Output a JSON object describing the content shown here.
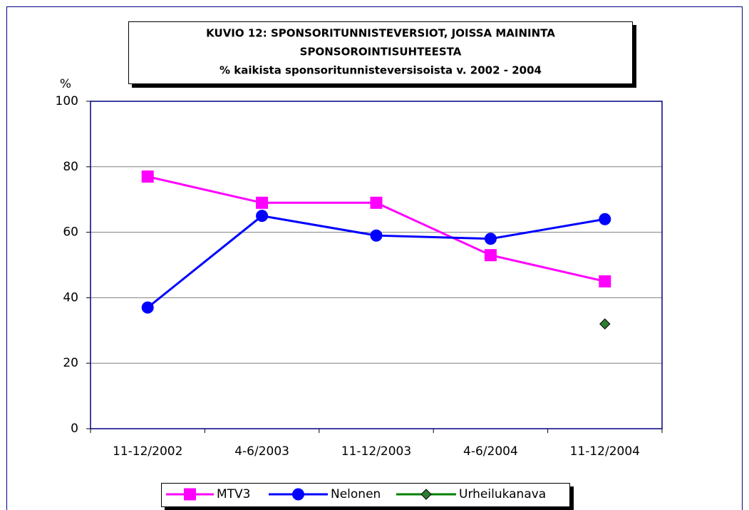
{
  "chart_data": {
    "type": "line",
    "title_lines": [
      "KUVIO 12: SPONSORITUNNISTEVERSIOT, JOISSA MAININTA",
      "SPONSOROINTISUHTEESTA",
      "% kaikista sponsoritunnisteversisoista v. 2002 - 2004"
    ],
    "y_label": "%",
    "categories": [
      "11-12/2002",
      "4-6/2003",
      "11-12/2003",
      "4-6/2004",
      "11-12/2004"
    ],
    "series": [
      {
        "name": "MTV3",
        "color": "#ff00ff",
        "marker": "square",
        "values": [
          77,
          69,
          69,
          53,
          45
        ]
      },
      {
        "name": "Nelonen",
        "color": "#0000ff",
        "marker": "circle",
        "values": [
          37,
          65,
          59,
          58,
          64
        ]
      },
      {
        "name": "Urheilukanava",
        "color": "#008000",
        "marker": "diamond",
        "values": [
          null,
          null,
          null,
          null,
          32
        ]
      }
    ],
    "ylim": [
      0,
      100
    ],
    "yticks": [
      0,
      20,
      40,
      60,
      80,
      100
    ],
    "grid": true,
    "legend": "bottom"
  }
}
